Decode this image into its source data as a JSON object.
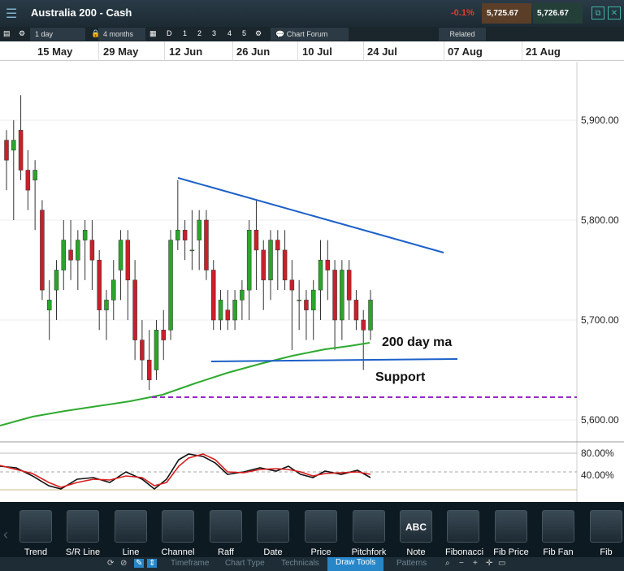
{
  "header": {
    "title": "Australia 200 - Cash",
    "change": "-0.1%",
    "sell": "5,725.67",
    "buy": "5,726.67"
  },
  "toolbar": {
    "interval": "1 day",
    "range": "4 months",
    "periods": [
      "D",
      "1",
      "2",
      "3",
      "4",
      "5"
    ],
    "forum": "Chart Forum",
    "related": "Related"
  },
  "dates": [
    "15 May",
    "29 May",
    "12 Jun",
    "26 Jun",
    "10 Jul",
    "24 Jul",
    "07 Aug",
    "21 Aug"
  ],
  "y_labels": [
    "5,900.00",
    "5,800.00",
    "5,700.00",
    "5,600.00"
  ],
  "osc_labels": [
    "80.00%",
    "40.00%"
  ],
  "annotations": {
    "ma": "200 day ma",
    "support": "Support"
  },
  "tools": [
    "Trend",
    "S/R Line",
    "Line",
    "Channel",
    "Raff",
    "Date",
    "Price",
    "Pitchfork",
    "Note",
    "Fibonacci",
    "Fib Price",
    "Fib Fan",
    "Fib"
  ],
  "tabs": [
    "Timeframe",
    "Chart Type",
    "Technicals",
    "Draw Tools",
    "Patterns"
  ],
  "chart_data": {
    "type": "candlestick",
    "title": "Australia 200 - Cash",
    "y_range": [
      5580,
      5950
    ],
    "candles": [
      [
        5880,
        5890,
        5830,
        5860
      ],
      [
        5870,
        5900,
        5800,
        5880
      ],
      [
        5890,
        5925,
        5840,
        5850
      ],
      [
        5850,
        5870,
        5810,
        5830
      ],
      [
        5840,
        5860,
        5790,
        5850
      ],
      [
        5810,
        5820,
        5720,
        5730
      ],
      [
        5710,
        5740,
        5680,
        5720
      ],
      [
        5730,
        5760,
        5700,
        5750
      ],
      [
        5750,
        5800,
        5730,
        5780
      ],
      [
        5770,
        5800,
        5740,
        5760
      ],
      [
        5760,
        5790,
        5730,
        5780
      ],
      [
        5780,
        5800,
        5740,
        5790
      ],
      [
        5780,
        5800,
        5730,
        5760
      ],
      [
        5760,
        5770,
        5690,
        5710
      ],
      [
        5710,
        5730,
        5680,
        5720
      ],
      [
        5720,
        5760,
        5700,
        5740
      ],
      [
        5750,
        5790,
        5720,
        5780
      ],
      [
        5780,
        5790,
        5700,
        5740
      ],
      [
        5740,
        5760,
        5660,
        5680
      ],
      [
        5680,
        5700,
        5640,
        5660
      ],
      [
        5660,
        5690,
        5630,
        5640
      ],
      [
        5650,
        5700,
        5640,
        5690
      ],
      [
        5690,
        5710,
        5660,
        5680
      ],
      [
        5690,
        5790,
        5680,
        5780
      ],
      [
        5780,
        5840,
        5770,
        5790
      ],
      [
        5790,
        5800,
        5760,
        5780
      ],
      [
        5770,
        5810,
        5750,
        5770
      ],
      [
        5780,
        5810,
        5750,
        5800
      ],
      [
        5800,
        5810,
        5740,
        5750
      ],
      [
        5750,
        5760,
        5690,
        5700
      ],
      [
        5700,
        5730,
        5690,
        5720
      ],
      [
        5710,
        5730,
        5690,
        5700
      ],
      [
        5700,
        5730,
        5690,
        5720
      ],
      [
        5720,
        5740,
        5700,
        5730
      ],
      [
        5730,
        5800,
        5700,
        5790
      ],
      [
        5790,
        5820,
        5730,
        5770
      ],
      [
        5770,
        5780,
        5710,
        5740
      ],
      [
        5740,
        5790,
        5720,
        5780
      ],
      [
        5780,
        5790,
        5730,
        5770
      ],
      [
        5770,
        5790,
        5730,
        5740
      ],
      [
        5740,
        5760,
        5670,
        5730
      ],
      [
        5720,
        5740,
        5690,
        5720
      ],
      [
        5720,
        5730,
        5680,
        5710
      ],
      [
        5710,
        5740,
        5680,
        5730
      ],
      [
        5730,
        5780,
        5700,
        5760
      ],
      [
        5760,
        5780,
        5720,
        5750
      ],
      [
        5750,
        5760,
        5670,
        5700
      ],
      [
        5700,
        5760,
        5680,
        5750
      ],
      [
        5750,
        5760,
        5700,
        5720
      ],
      [
        5720,
        5730,
        5690,
        5700
      ],
      [
        5700,
        5710,
        5650,
        5690
      ],
      [
        5690,
        5730,
        5680,
        5720
      ]
    ],
    "moving_average_label": "200 day ma",
    "support_label": "Support",
    "oscillator_levels": [
      80,
      40
    ]
  }
}
